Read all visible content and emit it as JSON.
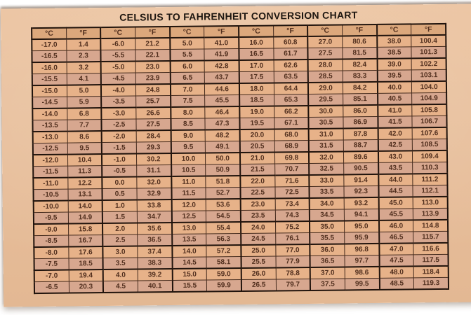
{
  "poster": {
    "title": "CELSIUS TO FAHRENHEIT CONVERSION CHART",
    "header": {
      "celsius": "°C",
      "fahrenheit": "°F",
      "pairs": 6
    },
    "colors": {
      "poster_bg": "#ecc5a3",
      "poster_bg_dim": "#e3b893",
      "header_bg": "#dca87c",
      "row_light": "#e7b289",
      "row_dark": "#d7a78f",
      "border_thin": "#43291c",
      "border_heavy": "#20130c",
      "cell_text": "#512f1e",
      "title_text": "#1d1610"
    },
    "rows": [
      [
        "-17.0",
        "1.4",
        "-6.0",
        "21.2",
        "5.0",
        "41.0",
        "16.0",
        "60.8",
        "27.0",
        "80.6",
        "38.0",
        "100.4"
      ],
      [
        "-16.5",
        "2.3",
        "-5.5",
        "22.1",
        "5.5",
        "41.9",
        "16.5",
        "61.7",
        "27.5",
        "81.5",
        "38.5",
        "101.3"
      ],
      [
        "-16.0",
        "3.2",
        "-5.0",
        "23.0",
        "6.0",
        "42.8",
        "17.0",
        "62.6",
        "28.0",
        "82.4",
        "39.0",
        "102.2"
      ],
      [
        "-15.5",
        "4.1",
        "-4.5",
        "23.9",
        "6.5",
        "43.7",
        "17.5",
        "63.5",
        "28.5",
        "83.3",
        "39.5",
        "103.1"
      ],
      [
        "-15.0",
        "5.0",
        "-4.0",
        "24.8",
        "7.0",
        "44.6",
        "18.0",
        "64.4",
        "29.0",
        "84.2",
        "40.0",
        "104.0"
      ],
      [
        "-14.5",
        "5.9",
        "-3.5",
        "25.7",
        "7.5",
        "45.5",
        "18.5",
        "65.3",
        "29.5",
        "85.1",
        "40.5",
        "104.9"
      ],
      [
        "-14.0",
        "6.8",
        "-3.0",
        "26.6",
        "8.0",
        "46.4",
        "19.0",
        "66.2",
        "30.0",
        "86.0",
        "41.0",
        "105.8"
      ],
      [
        "-13.5",
        "7.7",
        "-2.5",
        "27.5",
        "8.5",
        "47.3",
        "19.5",
        "67.1",
        "30.5",
        "86.9",
        "41.5",
        "106.7"
      ],
      [
        "-13.0",
        "8.6",
        "-2.0",
        "28.4",
        "9.0",
        "48.2",
        "20.0",
        "68.0",
        "31.0",
        "87.8",
        "42.0",
        "107.6"
      ],
      [
        "-12.5",
        "9.5",
        "-1.5",
        "29.3",
        "9.5",
        "49.1",
        "20.5",
        "68.9",
        "31.5",
        "88.7",
        "42.5",
        "108.5"
      ],
      [
        "-12.0",
        "10.4",
        "-1.0",
        "30.2",
        "10.0",
        "50.0",
        "21.0",
        "69.8",
        "32.0",
        "89.6",
        "43.0",
        "109.4"
      ],
      [
        "-11.5",
        "11.3",
        "-0.5",
        "31.1",
        "10.5",
        "50.9",
        "21.5",
        "70.7",
        "32.5",
        "90.5",
        "43.5",
        "110.3"
      ],
      [
        "-11.0",
        "12.2",
        "0.0",
        "32.0",
        "11.0",
        "51.8",
        "22.0",
        "71.6",
        "33.0",
        "91.4",
        "44.0",
        "111.2"
      ],
      [
        "-10.5",
        "13.1",
        "0.5",
        "32.9",
        "11.5",
        "52.7",
        "22.5",
        "72.5",
        "33.5",
        "92.3",
        "44.5",
        "112.1"
      ],
      [
        "-10.0",
        "14.0",
        "1.0",
        "33.8",
        "12.0",
        "53.6",
        "23.0",
        "73.4",
        "34.0",
        "93.2",
        "45.0",
        "113.0"
      ],
      [
        "-9.5",
        "14.9",
        "1.5",
        "34.7",
        "12.5",
        "54.5",
        "23.5",
        "74.3",
        "34.5",
        "94.1",
        "45.5",
        "113.9"
      ],
      [
        "-9.0",
        "15.8",
        "2.0",
        "35.6",
        "13.0",
        "55.4",
        "24.0",
        "75.2",
        "35.0",
        "95.0",
        "46.0",
        "114.8"
      ],
      [
        "-8.5",
        "16.7",
        "2.5",
        "36.5",
        "13.5",
        "56.3",
        "24.5",
        "76.1",
        "35.5",
        "95.9",
        "46.5",
        "115.7"
      ],
      [
        "-8.0",
        "17.6",
        "3.0",
        "37.4",
        "14.0",
        "57.2",
        "25.0",
        "77.0",
        "36.0",
        "96.8",
        "47.0",
        "116.6"
      ],
      [
        "-7.5",
        "18.5",
        "3.5",
        "38.3",
        "14.5",
        "58.1",
        "25.5",
        "77.9",
        "36.5",
        "97.7",
        "47.5",
        "117.5"
      ],
      [
        "-7.0",
        "19.4",
        "4.0",
        "39.2",
        "15.0",
        "59.0",
        "26.0",
        "78.8",
        "37.0",
        "98.6",
        "48.0",
        "118.4"
      ],
      [
        "-6.5",
        "20.3",
        "4.5",
        "40.1",
        "15.5",
        "59.9",
        "26.5",
        "79.7",
        "37.5",
        "99.5",
        "48.5",
        "119.3"
      ]
    ]
  }
}
